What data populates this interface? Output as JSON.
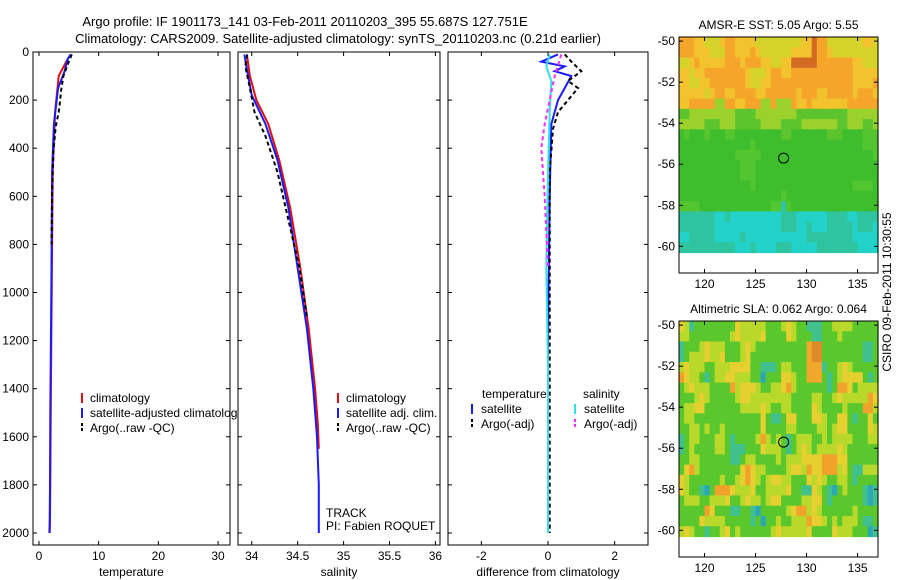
{
  "title": {
    "line1": "Argo profile: IF 1901173_141 03-Feb-2011 20110203_395 55.687S 127.751E",
    "line2": "Climatology: CARS2009. Satellite-adjusted climatology: synTS_20110203.nc (0.21d earlier)"
  },
  "side_stamp": "CSIRO 09-Feb-2011 10:30:55",
  "colors": {
    "climatology": "#e01010",
    "satellite": "#1a1aff",
    "argo": "#000000",
    "satellite_sal": "#33e0e8",
    "argo_sal": "#ff2cff",
    "marker_edge": "#000000"
  },
  "chart_data": [
    {
      "id": "temperature",
      "type": "line",
      "xlabel": "temperature",
      "ylabel": "",
      "xlim": [
        -1,
        32
      ],
      "ylim": [
        2050,
        0
      ],
      "xticks": [
        "0",
        "10",
        "20",
        "30"
      ],
      "xtick_values": [
        0,
        10,
        20,
        30
      ],
      "yticks": [
        "0",
        "200",
        "400",
        "600",
        "800",
        "1000",
        "1200",
        "1400",
        "1600",
        "1800",
        "2000"
      ],
      "ytick_values": [
        0,
        200,
        400,
        600,
        800,
        1000,
        1200,
        1400,
        1600,
        1800,
        2000
      ],
      "legend_position": "lower-right",
      "legend": [
        "climatology",
        "satellite-adjusted climatology",
        "Argo(..raw -QC)"
      ],
      "series": [
        {
          "name": "climatology",
          "color": "#e01010",
          "dash": "",
          "x": [
            4.9,
            3.3,
            2.7,
            2.3,
            2.2,
            2.1,
            2.0,
            1.95,
            1.9,
            1.85,
            1.8
          ],
          "y": [
            25,
            100,
            250,
            500,
            800,
            1100,
            1400,
            1600,
            1800,
            1950,
            2000
          ]
        },
        {
          "name": "satellite-adjusted climatology",
          "color": "#1a1aff",
          "dash": "",
          "x": [
            5.3,
            4.8,
            4.3,
            3.2,
            2.5,
            2.2,
            2.1,
            2.0,
            1.9,
            1.85,
            1.8,
            1.75
          ],
          "y": [
            10,
            30,
            80,
            150,
            300,
            500,
            900,
            1200,
            1500,
            1800,
            1950,
            2000
          ]
        },
        {
          "name": "Argo(..raw -QC)",
          "color": "#000000",
          "dash": "4,3",
          "x": [
            5.5,
            5.0,
            4.1,
            3.7,
            3.5,
            3.3,
            2.8,
            2.4,
            2.2,
            2.1
          ],
          "y": [
            10,
            40,
            100,
            160,
            210,
            250,
            310,
            420,
            600,
            800
          ]
        }
      ]
    },
    {
      "id": "salinity",
      "type": "line",
      "xlabel": "salinity",
      "xlim": [
        33.85,
        36.05
      ],
      "ylim": [
        2050,
        0
      ],
      "xticks": [
        "34",
        "34.5",
        "35",
        "35.5",
        "36"
      ],
      "xtick_values": [
        34,
        34.5,
        35,
        35.5,
        36
      ],
      "legend_position": "lower-right",
      "legend": [
        "climatology",
        "satellite adj. clim.",
        "Argo(..raw -QC)"
      ],
      "annotations": [
        "TRACK",
        "PI: Fabien ROQUET"
      ],
      "series": [
        {
          "name": "climatology",
          "color": "#e01010",
          "dash": "",
          "x": [
            33.95,
            33.98,
            34.05,
            34.18,
            34.3,
            34.42,
            34.53,
            34.62,
            34.69,
            34.72,
            34.73
          ],
          "y": [
            20,
            100,
            200,
            300,
            450,
            650,
            900,
            1150,
            1400,
            1550,
            1650
          ]
        },
        {
          "name": "satellite adj. clim.",
          "color": "#1a1aff",
          "dash": "",
          "x": [
            33.92,
            33.95,
            34.0,
            34.15,
            34.28,
            34.4,
            34.5,
            34.6,
            34.67,
            34.71,
            34.73,
            34.73
          ],
          "y": [
            10,
            80,
            180,
            300,
            450,
            650,
            900,
            1150,
            1400,
            1600,
            1800,
            2000
          ]
        },
        {
          "name": "Argo(..raw -QC)",
          "color": "#000000",
          "dash": "4,3",
          "x": [
            33.95,
            33.93,
            33.98,
            34.03,
            34.15,
            34.28,
            34.4,
            34.52,
            34.6
          ],
          "y": [
            10,
            60,
            150,
            250,
            350,
            500,
            700,
            900,
            1100
          ]
        }
      ]
    },
    {
      "id": "difference",
      "type": "line",
      "xlabel": "difference from climatology",
      "xlim": [
        -3,
        3
      ],
      "ylim": [
        2050,
        0
      ],
      "xticks": [
        "-2",
        "0",
        "2"
      ],
      "xtick_values": [
        -2,
        0,
        2
      ],
      "legend_position": "lower-center",
      "legend_headers": [
        "temperature",
        "salinity"
      ],
      "legend": [
        "satellite",
        "Argo(-adj)",
        "satellite",
        "Argo(-adj)"
      ],
      "series": [
        {
          "name": "temperature satellite",
          "color": "#1a1aff",
          "dash": "",
          "x": [
            0.3,
            -0.2,
            0.5,
            0.2,
            0.7,
            0.5,
            0.3,
            0.1,
            0.05,
            0.0,
            0.0
          ],
          "y": [
            10,
            40,
            60,
            80,
            100,
            150,
            200,
            300,
            600,
            1200,
            2000
          ]
        },
        {
          "name": "temperature Argo(-adj)",
          "color": "#000000",
          "dash": "4,3",
          "x": [
            0.5,
            0.7,
            1.0,
            0.6,
            0.9,
            0.6,
            0.3,
            0.15,
            0.05,
            0.05,
            0.05
          ],
          "y": [
            10,
            40,
            80,
            120,
            150,
            200,
            250,
            320,
            500,
            1000,
            2000
          ]
        },
        {
          "name": "salinity satellite",
          "color": "#33e0e8",
          "dash": "",
          "x": [
            0.05,
            -0.05,
            0.1,
            0.05,
            0.0,
            -0.05,
            0.0,
            0.0
          ],
          "y": [
            10,
            60,
            120,
            250,
            500,
            900,
            1300,
            2000
          ]
        },
        {
          "name": "salinity Argo(-adj)",
          "color": "#ff2cff",
          "dash": "4,3",
          "x": [
            0.4,
            0.2,
            -0.1,
            -0.2,
            -0.1,
            0.0
          ],
          "y": [
            10,
            100,
            300,
            400,
            600,
            900
          ]
        }
      ]
    },
    {
      "id": "amsr_sst",
      "type": "heatmap",
      "title": "AMSR-E SST: 5.05 Argo: 5.55",
      "xlim": [
        117.5,
        137
      ],
      "ylim": [
        -61.3,
        -49.8
      ],
      "xticks": [
        "120",
        "125",
        "130",
        "135"
      ],
      "xtick_values": [
        120,
        125,
        130,
        135
      ],
      "yticks": [
        "-50",
        "-52",
        "-54",
        "-56",
        "-58",
        "-60"
      ],
      "ytick_values": [
        -50,
        -52,
        -54,
        -56,
        -58,
        -60
      ],
      "marker": {
        "lon": 127.75,
        "lat": -55.7
      },
      "field_lat_range": [
        -60,
        -49.8
      ]
    },
    {
      "id": "altimetric_sla",
      "type": "heatmap",
      "title": "Altimetric SLA: 0.062 Argo: 0.064",
      "xlim": [
        117.5,
        137
      ],
      "ylim": [
        -61.3,
        -49.8
      ],
      "xticks": [
        "120",
        "125",
        "130",
        "135"
      ],
      "xtick_values": [
        120,
        125,
        130,
        135
      ],
      "yticks": [
        "-50",
        "-52",
        "-54",
        "-56",
        "-58",
        "-60"
      ],
      "ytick_values": [
        -50,
        -52,
        -54,
        -56,
        -58,
        -60
      ],
      "marker": {
        "lon": 127.75,
        "lat": -55.7
      },
      "field_lat_range": [
        -60,
        -49.8
      ]
    }
  ]
}
